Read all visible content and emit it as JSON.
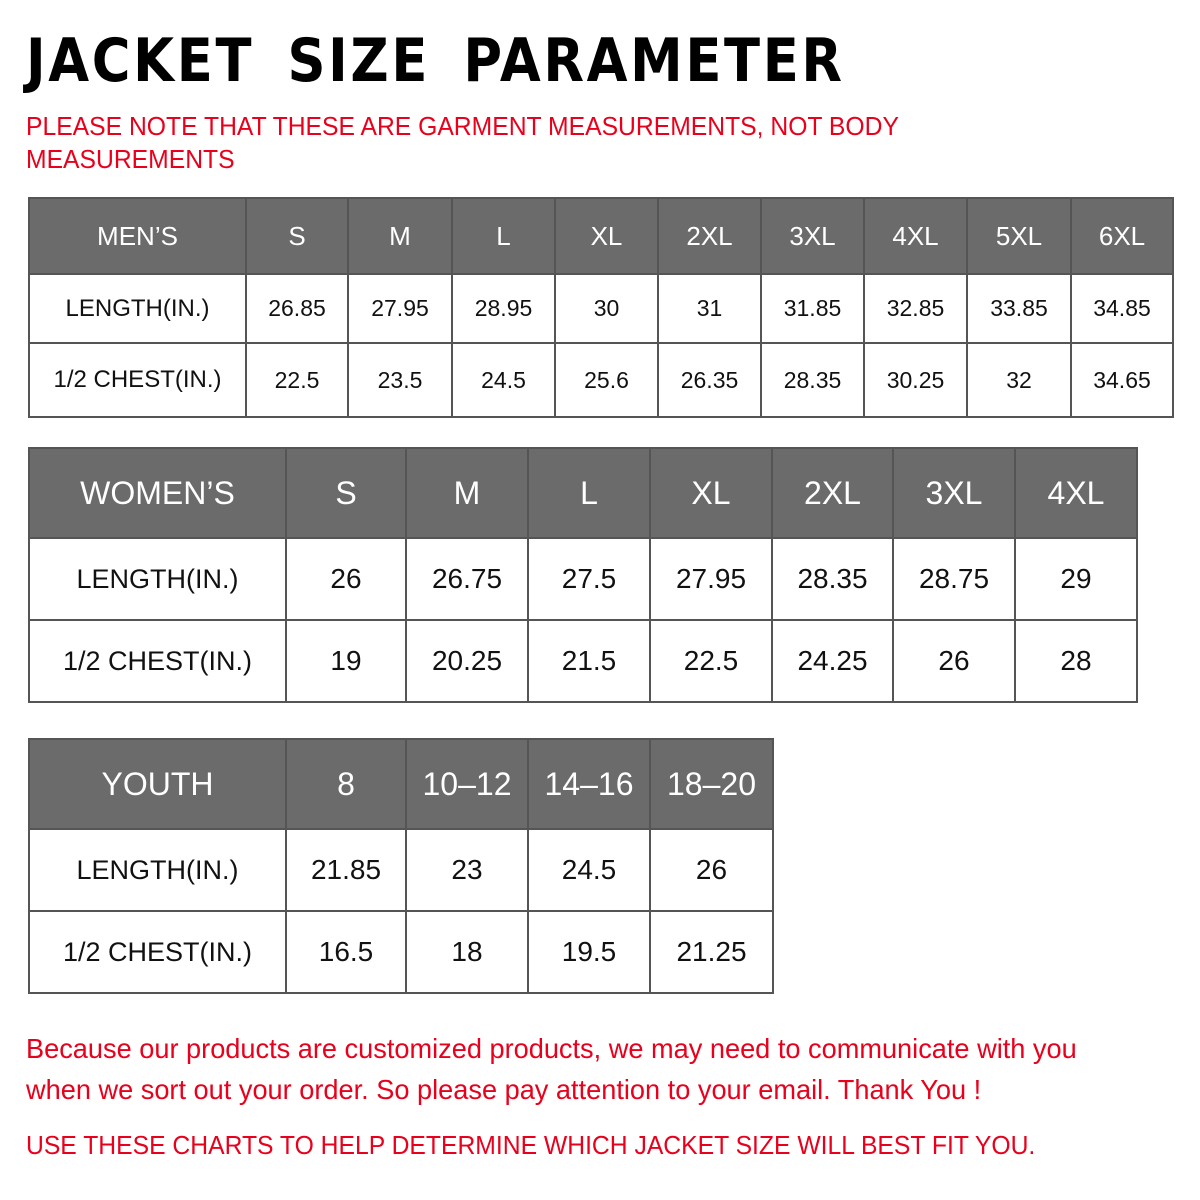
{
  "title": "JACKET SIZE PARAMETER",
  "note": "PLEASE NOTE THAT THESE ARE GARMENT MEASUREMENTS, NOT BODY MEASUREMENTS",
  "colors": {
    "accent_red": "#e8001c",
    "header_gray": "#6b6b6b"
  },
  "men": {
    "header": [
      "MEN’S",
      "S",
      "M",
      "L",
      "XL",
      "2XL",
      "3XL",
      "4XL",
      "5XL",
      "6XL"
    ],
    "rows": [
      [
        "LENGTH(IN.)",
        "26.85",
        "27.95",
        "28.95",
        "30",
        "31",
        "31.85",
        "32.85",
        "33.85",
        "34.85"
      ],
      [
        "1/2 CHEST(IN.)",
        "22.5",
        "23.5",
        "24.5",
        "25.6",
        "26.35",
        "28.35",
        "30.25",
        "32",
        "34.65"
      ]
    ]
  },
  "women": {
    "header": [
      "WOMEN’S",
      "S",
      "M",
      "L",
      "XL",
      "2XL",
      "3XL",
      "4XL"
    ],
    "rows": [
      [
        "LENGTH(IN.)",
        "26",
        "26.75",
        "27.5",
        "27.95",
        "28.35",
        "28.75",
        "29"
      ],
      [
        "1/2 CHEST(IN.)",
        "19",
        "20.25",
        "21.5",
        "22.5",
        "24.25",
        "26",
        "28"
      ]
    ]
  },
  "youth": {
    "header": [
      "YOUTH",
      "8",
      "10–12",
      "14–16",
      "18–20"
    ],
    "rows": [
      [
        "LENGTH(IN.)",
        "21.85",
        "23",
        "24.5",
        "26"
      ],
      [
        "1/2 CHEST(IN.)",
        "16.5",
        "18",
        "19.5",
        "21.25"
      ]
    ]
  },
  "footer": {
    "message": "Because our products are customized products, we may need to communicate with you when we sort out your order. So please pay attention to your email. Thank You !",
    "advice": "USE THESE CHARTS TO HELP DETERMINE WHICH JACKET SIZE WILL BEST FIT YOU."
  }
}
